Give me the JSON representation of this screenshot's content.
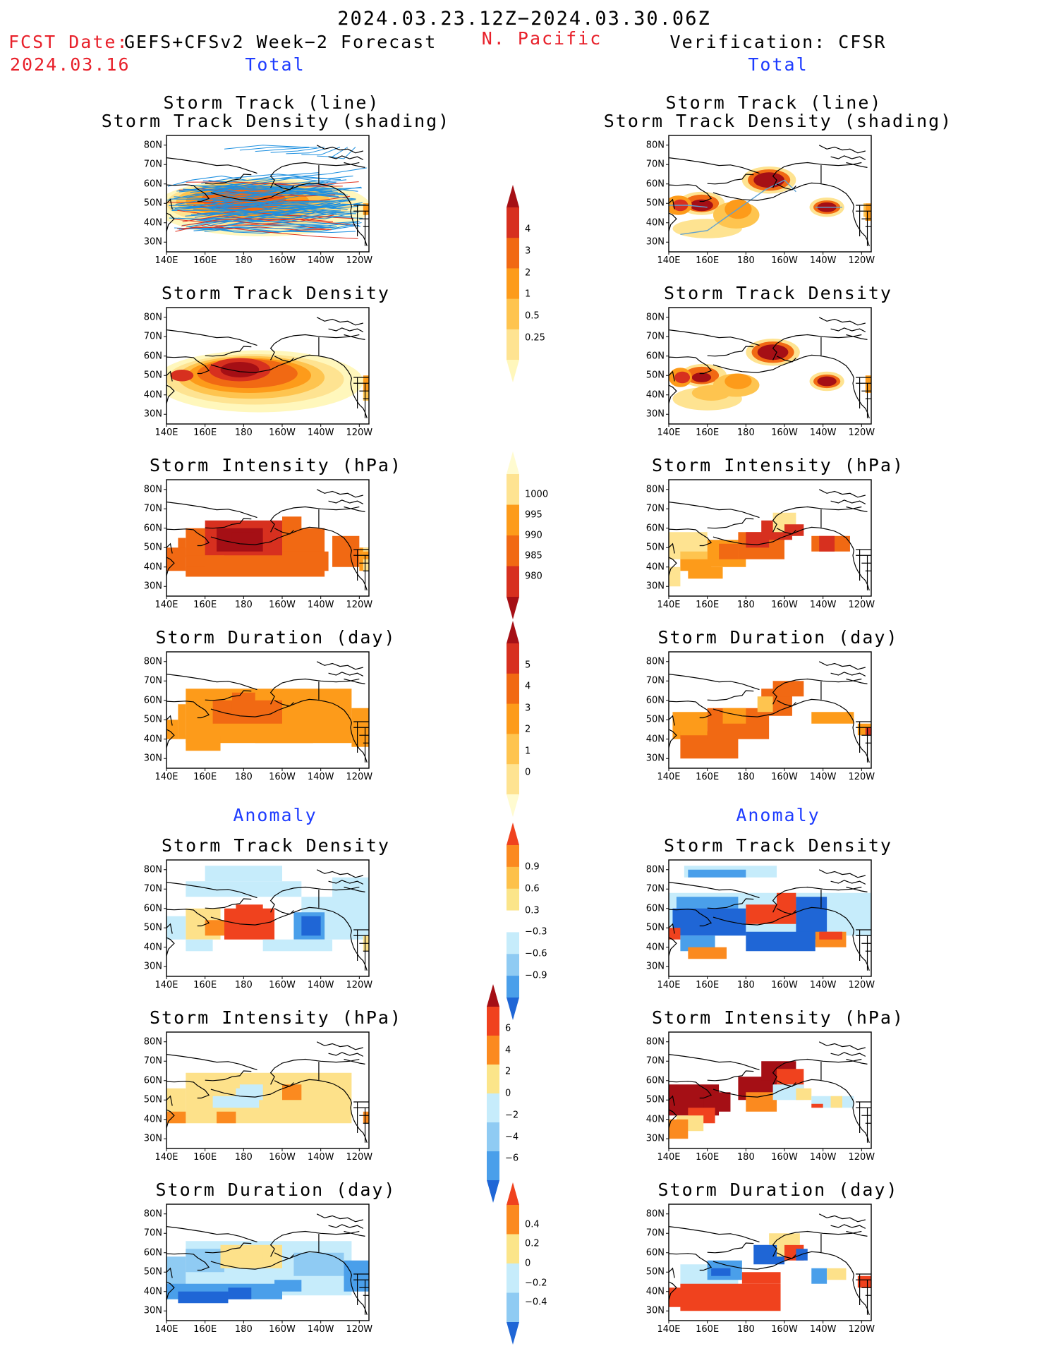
{
  "header": {
    "date_range": "2024.03.23.12Z−2024.03.30.06Z",
    "fcst_label": "FCST Date:",
    "fcst_model": "GEFS+CFSv2 Week−2 Forecast",
    "fcst_date": "2024.03.16",
    "region": "N. Pacific",
    "verification": "Verification: CFSR"
  },
  "columns": [
    {
      "section_total": "Total",
      "section_anomaly": "Anomaly"
    },
    {
      "section_total": "Total",
      "section_anomaly": "Anomaly"
    }
  ],
  "panel_titles": {
    "track_line": "Storm Track (line)",
    "track_shading": "Storm Track Density (shading)",
    "density": "Storm Track Density",
    "intensity": "Storm Intensity (hPa)",
    "duration": "Storm Duration (day)"
  },
  "axes": {
    "y_ticks": [
      "80N",
      "70N",
      "60N",
      "50N",
      "40N",
      "30N"
    ],
    "x_ticks": [
      "140E",
      "160E",
      "180",
      "160W",
      "140W",
      "120W"
    ]
  },
  "colorbars": {
    "density": {
      "labels": [
        "4",
        "3",
        "2",
        "1",
        "0.5",
        "0.25"
      ],
      "colors": [
        "#a50f15",
        "#d7301f",
        "#f16913",
        "#fd9b1a",
        "#fec44f",
        "#fee391",
        "#fff7bc"
      ]
    },
    "intensity": {
      "labels": [
        "1000",
        "995",
        "990",
        "985",
        "980"
      ],
      "colors": [
        "#fffbd0",
        "#fee391",
        "#fd9b1a",
        "#f16913",
        "#d7301f",
        "#a50f15"
      ]
    },
    "duration": {
      "labels": [
        "5",
        "4",
        "3",
        "2",
        "1",
        "0"
      ],
      "colors": [
        "#a50f15",
        "#d7301f",
        "#f16913",
        "#fd9b1a",
        "#fec44f",
        "#fee391",
        "#fffbd0"
      ]
    },
    "anom_density": {
      "labels": [
        "0.9",
        "0.6",
        "0.3",
        "−0.3",
        "−0.6",
        "−0.9"
      ],
      "colors": [
        "#f0421e",
        "#fb8a1f",
        "#fdc14a",
        "#fbe58a",
        "#ffffff",
        "#c6ecfb",
        "#8fcbf3",
        "#4a9fea",
        "#1f66d6"
      ]
    },
    "anom_intensity": {
      "labels": [
        "6",
        "4",
        "2",
        "0",
        "−2",
        "−4",
        "−6"
      ],
      "colors": [
        "#a50f15",
        "#f0421e",
        "#fb8a1f",
        "#fbe58a",
        "#c6ecfb",
        "#8fcbf3",
        "#4a9fea",
        "#1f66d6"
      ]
    },
    "anom_duration": {
      "labels": [
        "0.4",
        "0.2",
        "0",
        "−0.2",
        "−0.4"
      ],
      "colors": [
        "#f0421e",
        "#fb8a1f",
        "#fbe58a",
        "#c6ecfb",
        "#8fcbf3",
        "#1f66d6"
      ]
    }
  }
}
